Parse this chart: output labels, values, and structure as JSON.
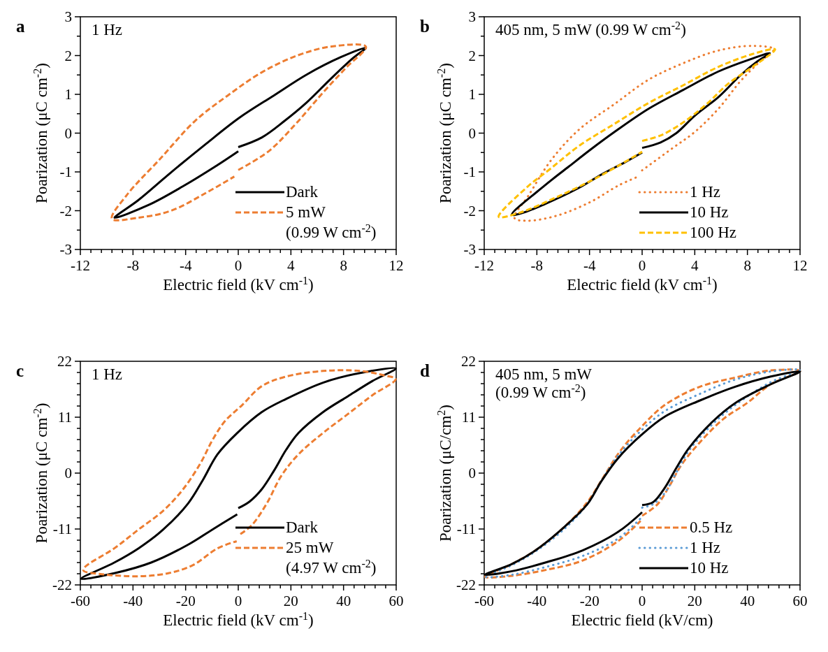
{
  "chart_data": [
    {
      "type": "line",
      "xlabel": "Electric field (kV cm$^{-1}$)",
      "ylabel": "Poarization (μC cm$^{-2}$)",
      "annotations": [
        "a",
        "1 Hz"
      ],
      "legend": "bottom right",
      "xlim": [
        -12,
        12
      ],
      "ylim": [
        -3,
        3
      ],
      "xticks": [
        -12,
        {
          "value": -11.2,
          "label": null
        },
        {
          "value": -10.4,
          "label": null
        },
        {
          "value": -9.6,
          "label": null
        },
        {
          "value": -8.8,
          "label": null
        },
        -8,
        {
          "value": -7.2,
          "label": null
        },
        {
          "value": -6.4,
          "label": null
        },
        {
          "value": -5.6,
          "label": null
        },
        {
          "value": -4.8,
          "label": null
        },
        -4,
        {
          "value": -3.2,
          "label": null
        },
        {
          "value": -2.4,
          "label": null
        },
        {
          "value": -1.6,
          "label": null
        },
        {
          "value": -0.8,
          "label": null
        },
        0,
        {
          "value": 0.8,
          "label": null
        },
        {
          "value": 1.6,
          "label": null
        },
        {
          "value": 2.4,
          "label": null
        },
        {
          "value": 3.2,
          "label": null
        },
        4,
        {
          "value": 4.8,
          "label": null
        },
        {
          "value": 5.6,
          "label": null
        },
        {
          "value": 6.4,
          "label": null
        },
        {
          "value": 7.2,
          "label": null
        },
        8,
        {
          "value": 8.8,
          "label": null
        },
        {
          "value": 9.6,
          "label": null
        },
        {
          "value": 10.4,
          "label": null
        },
        {
          "value": 11.2,
          "label": null
        },
        12
      ],
      "yticks": [
        -3,
        {
          "value": -2.5,
          "label": null
        },
        -2,
        {
          "value": -1.5,
          "label": null
        },
        -1,
        {
          "value": -0.5,
          "label": null
        },
        0,
        {
          "value": 0.5,
          "label": null
        },
        1,
        {
          "value": 1.5,
          "label": null
        },
        2,
        {
          "value": 2.5,
          "label": null
        },
        3
      ],
      "series": [
        {
          "name": "Dark",
          "color": "#000000",
          "line_style": "solid",
          "x": [
            0,
            1.8,
            3.5,
            5.2,
            7.0,
            8.7,
            9.7,
            7.8,
            5.2,
            2.7,
            0.1,
            -2.5,
            -5.1,
            -7.6,
            -9.4,
            -6.8,
            -4.2,
            -1.6,
            0
          ],
          "values": [
            -0.36,
            -0.11,
            0.31,
            0.79,
            1.39,
            1.93,
            2.2,
            1.96,
            1.51,
            0.97,
            0.4,
            -0.29,
            -1.01,
            -1.73,
            -2.18,
            -1.85,
            -1.37,
            -0.83,
            -0.47
          ]
        },
        {
          "name": "5 mW\n(0.99 W cm$^{-2}$)",
          "color": "#ed7d31",
          "line_style": "dashed",
          "x": [
            0,
            2.3,
            4.4,
            6.4,
            8.2,
            9.7,
            7.0,
            4.4,
            1.8,
            -0.8,
            -3.3,
            -5.9,
            -8.5,
            -9.6,
            -7.6,
            -5.1,
            -2.5,
            -0.3
          ],
          "values": [
            -0.95,
            -0.47,
            0.25,
            1.03,
            1.69,
            2.23,
            2.23,
            1.99,
            1.57,
            0.97,
            0.31,
            -0.65,
            -1.61,
            -2.21,
            -2.18,
            -2.0,
            -1.55,
            -1.12
          ]
        }
      ]
    },
    {
      "type": "line",
      "xlabel": "Electric field (kV cm$^{-1}$)",
      "ylabel": "Poarization (μC cm$^{-2}$)",
      "annotations": [
        "b",
        "405 nm, 5 mW (0.99 W cm$^{-2}$)"
      ],
      "legend": "bottom right",
      "xlim": [
        -12,
        12
      ],
      "ylim": [
        -3,
        3
      ],
      "xticks": [
        -12,
        {
          "value": -11.2,
          "label": null
        },
        {
          "value": -10.4,
          "label": null
        },
        {
          "value": -9.6,
          "label": null
        },
        {
          "value": -8.8,
          "label": null
        },
        -8,
        {
          "value": -7.2,
          "label": null
        },
        {
          "value": -6.4,
          "label": null
        },
        {
          "value": -5.6,
          "label": null
        },
        {
          "value": -4.8,
          "label": null
        },
        -4,
        {
          "value": -3.2,
          "label": null
        },
        {
          "value": -2.4,
          "label": null
        },
        {
          "value": -1.6,
          "label": null
        },
        {
          "value": -0.8,
          "label": null
        },
        0,
        {
          "value": 0.8,
          "label": null
        },
        {
          "value": 1.6,
          "label": null
        },
        {
          "value": 2.4,
          "label": null
        },
        {
          "value": 3.2,
          "label": null
        },
        4,
        {
          "value": 4.8,
          "label": null
        },
        {
          "value": 5.6,
          "label": null
        },
        {
          "value": 6.4,
          "label": null
        },
        {
          "value": 7.2,
          "label": null
        },
        8,
        {
          "value": 8.8,
          "label": null
        },
        {
          "value": 9.6,
          "label": null
        },
        {
          "value": 10.4,
          "label": null
        },
        {
          "value": 11.2,
          "label": null
        },
        12
      ],
      "yticks": [
        -3,
        {
          "value": -2.5,
          "label": null
        },
        -2,
        {
          "value": -1.5,
          "label": null
        },
        -1,
        {
          "value": -0.5,
          "label": null
        },
        0,
        {
          "value": 0.5,
          "label": null
        },
        1,
        {
          "value": 1.5,
          "label": null
        },
        2,
        {
          "value": 2.5,
          "label": null
        },
        3
      ],
      "series": [
        {
          "name": "1 Hz",
          "color": "#ed7d31",
          "line_style": "dotted",
          "x": [
            0,
            2.3,
            4.0,
            5.8,
            7.5,
            8.9,
            10.0,
            8.4,
            5.8,
            3.1,
            0.5,
            -2.1,
            -4.8,
            -6.9,
            -8.6,
            -9.7,
            -8.8,
            -6.5,
            -3.9,
            -1.8,
            -0.3
          ],
          "values": [
            -0.96,
            -0.39,
            0.03,
            0.63,
            1.35,
            1.83,
            2.16,
            2.25,
            2.13,
            1.8,
            1.38,
            0.75,
            0.09,
            -0.69,
            -1.59,
            -2.19,
            -2.26,
            -2.13,
            -1.77,
            -1.35,
            -1.12
          ]
        },
        {
          "name": "10 Hz",
          "color": "#000000",
          "line_style": "solid",
          "x": [
            0,
            1.4,
            2.6,
            4.0,
            5.8,
            7.5,
            8.8,
            9.7,
            8.1,
            5.8,
            3.1,
            0.5,
            -2.1,
            -3.9,
            -5.6,
            -7.4,
            -9.9,
            -9.2,
            -7.4,
            -4.8,
            -3.0,
            -1.3,
            0
          ],
          "values": [
            -0.38,
            -0.24,
            0,
            0.45,
            0.93,
            1.5,
            1.86,
            2.06,
            1.89,
            1.59,
            1.11,
            0.63,
            0.03,
            -0.42,
            -0.87,
            -1.35,
            -2.1,
            -2.07,
            -1.83,
            -1.41,
            -1.05,
            -0.75,
            -0.5
          ]
        },
        {
          "name": "100 Hz",
          "color": "#ffc000",
          "line_style": "dashed",
          "x": [
            0,
            1.4,
            3.1,
            4.9,
            6.6,
            8.4,
            10.1,
            8.4,
            5.8,
            3.1,
            0.5,
            -2.1,
            -4.8,
            -6.9,
            -8.8,
            -10.9,
            -9.2,
            -6.5,
            -3.9,
            -1.8,
            0
          ],
          "values": [
            -0.2,
            -0.06,
            0.27,
            0.75,
            1.29,
            1.71,
            2.16,
            2.04,
            1.71,
            1.23,
            0.78,
            0.24,
            -0.33,
            -0.9,
            -1.41,
            -2.16,
            -2.04,
            -1.65,
            -1.23,
            -0.84,
            -0.48
          ]
        }
      ]
    },
    {
      "type": "line",
      "xlabel": "Electric field (kV cm$^{-1}$)",
      "ylabel": "Poarization (μC cm$^{-2}$)",
      "annotations": [
        "c",
        "1 Hz"
      ],
      "legend": "bottom right",
      "xlim": [
        -60,
        60
      ],
      "ylim": [
        -22,
        22
      ],
      "xticks": [
        -60,
        {
          "value": -56,
          "label": null
        },
        {
          "value": -52,
          "label": null
        },
        {
          "value": -48,
          "label": null
        },
        {
          "value": -44,
          "label": null
        },
        -40,
        {
          "value": -36,
          "label": null
        },
        {
          "value": -32,
          "label": null
        },
        {
          "value": -28,
          "label": null
        },
        {
          "value": -24,
          "label": null
        },
        -20,
        {
          "value": -16,
          "label": null
        },
        {
          "value": -12,
          "label": null
        },
        {
          "value": -8,
          "label": null
        },
        {
          "value": -4,
          "label": null
        },
        0,
        {
          "value": 4,
          "label": null
        },
        {
          "value": 8,
          "label": null
        },
        {
          "value": 12,
          "label": null
        },
        {
          "value": 16,
          "label": null
        },
        20,
        {
          "value": 24,
          "label": null
        },
        {
          "value": 28,
          "label": null
        },
        {
          "value": 32,
          "label": null
        },
        {
          "value": 36,
          "label": null
        },
        40,
        {
          "value": 44,
          "label": null
        },
        {
          "value": 48,
          "label": null
        },
        {
          "value": 52,
          "label": null
        },
        {
          "value": 56,
          "label": null
        },
        60
      ],
      "yticks": [
        -22,
        {
          "value": -19.8,
          "label": null
        },
        {
          "value": -17.6,
          "label": null
        },
        {
          "value": -15.4,
          "label": null
        },
        {
          "value": -13.2,
          "label": null
        },
        -11,
        {
          "value": -8.8,
          "label": null
        },
        {
          "value": -6.6,
          "label": null
        },
        {
          "value": -4.4,
          "label": null
        },
        {
          "value": -2.2,
          "label": null
        },
        0,
        {
          "value": 2.2,
          "label": null
        },
        {
          "value": 4.4,
          "label": null
        },
        {
          "value": 6.6,
          "label": null
        },
        {
          "value": 8.8,
          "label": null
        },
        11,
        {
          "value": 13.2,
          "label": null
        },
        {
          "value": 15.4,
          "label": null
        },
        {
          "value": 17.6,
          "label": null
        },
        {
          "value": 19.8,
          "label": null
        },
        22
      ],
      "series": [
        {
          "name": "Dark",
          "color": "#000000",
          "line_style": "solid",
          "x": [
            0,
            4.3,
            8.9,
            13.6,
            18.2,
            22.9,
            32.2,
            41.6,
            50.9,
            59.8,
            46.3,
            32.2,
            18.2,
            8.9,
            -0.4,
            -7.9,
            -13.5,
            -19.1,
            -28.5,
            -37.9,
            -47.1,
            -59.7,
            -47.1,
            -33.1,
            -19.1,
            -9.8,
            -0.4
          ],
          "values": [
            -6.9,
            -5.6,
            -3.2,
            0.5,
            4.6,
            7.9,
            12.0,
            15.1,
            18.1,
            20.6,
            19.7,
            17.8,
            14.6,
            12.0,
            7.9,
            3.7,
            -1.4,
            -6.0,
            -11.1,
            -14.8,
            -17.6,
            -20.8,
            -19.7,
            -17.6,
            -14.1,
            -11.1,
            -8.1
          ]
        },
        {
          "name": "25 mW\n(4.97 W cm$^{-2}$)",
          "color": "#ed7d31",
          "line_style": "dashed",
          "x": [
            0.8,
            5.2,
            10.8,
            16.4,
            22.9,
            32.2,
            41.6,
            50.9,
            59.8,
            55.6,
            46.3,
            32.2,
            18.2,
            8.9,
            1.5,
            -5.1,
            -9.8,
            -14.4,
            -21.0,
            -28.5,
            -37.9,
            -47.1,
            -58.3,
            -58.8,
            -51.8,
            -37.9,
            -26.6,
            -17.2,
            -7.9,
            -0.6
          ],
          "values": [
            -12.0,
            -10.2,
            -6.0,
            -0.5,
            3.7,
            7.9,
            11.6,
            15.3,
            18.5,
            19.2,
            20.1,
            20.1,
            19.0,
            17.1,
            13.4,
            10.2,
            6.5,
            1.9,
            -3.2,
            -7.4,
            -11.1,
            -14.8,
            -18.5,
            -19.2,
            -19.9,
            -20.3,
            -19.7,
            -18.1,
            -14.8,
            -13.4
          ]
        }
      ]
    },
    {
      "type": "line",
      "xlabel": "Electric field (kV/cm)",
      "ylabel": "Poarization (μC/cm$^{2}$)",
      "annotations": [
        "d",
        "405 nm, 5 mW\n(0.99 W cm$^{-2}$)"
      ],
      "legend": "bottom right",
      "xlim": [
        -60,
        60
      ],
      "ylim": [
        -22,
        22
      ],
      "xticks": [
        -60,
        {
          "value": -56,
          "label": null
        },
        {
          "value": -52,
          "label": null
        },
        {
          "value": -48,
          "label": null
        },
        {
          "value": -44,
          "label": null
        },
        -40,
        {
          "value": -36,
          "label": null
        },
        {
          "value": -32,
          "label": null
        },
        {
          "value": -28,
          "label": null
        },
        {
          "value": -24,
          "label": null
        },
        -20,
        {
          "value": -16,
          "label": null
        },
        {
          "value": -12,
          "label": null
        },
        {
          "value": -8,
          "label": null
        },
        {
          "value": -4,
          "label": null
        },
        0,
        {
          "value": 4,
          "label": null
        },
        {
          "value": 8,
          "label": null
        },
        {
          "value": 12,
          "label": null
        },
        {
          "value": 16,
          "label": null
        },
        20,
        {
          "value": 24,
          "label": null
        },
        {
          "value": 28,
          "label": null
        },
        {
          "value": 32,
          "label": null
        },
        {
          "value": 36,
          "label": null
        },
        40,
        {
          "value": 44,
          "label": null
        },
        {
          "value": 48,
          "label": null
        },
        {
          "value": 52,
          "label": null
        },
        {
          "value": 56,
          "label": null
        },
        60
      ],
      "yticks": [
        -22,
        {
          "value": -19.8,
          "label": null
        },
        {
          "value": -17.6,
          "label": null
        },
        {
          "value": -15.4,
          "label": null
        },
        {
          "value": -13.2,
          "label": null
        },
        -11,
        {
          "value": -8.8,
          "label": null
        },
        {
          "value": -6.6,
          "label": null
        },
        {
          "value": -4.4,
          "label": null
        },
        {
          "value": -2.2,
          "label": null
        },
        0,
        {
          "value": 2.2,
          "label": null
        },
        {
          "value": 4.4,
          "label": null
        },
        {
          "value": 6.6,
          "label": null
        },
        {
          "value": 8.8,
          "label": null
        },
        11,
        {
          "value": 13.2,
          "label": null
        },
        {
          "value": 15.4,
          "label": null
        },
        {
          "value": 17.6,
          "label": null
        },
        {
          "value": 19.8,
          "label": null
        },
        22
      ],
      "series": [
        {
          "name": "0.5 Hz",
          "color": "#ed7d31",
          "line_style": "dashed",
          "x": [
            0,
            5.9,
            10.4,
            14.9,
            22.0,
            31.0,
            39.9,
            48.9,
            60.0,
            48.9,
            35.4,
            22.0,
            8.6,
            -0.3,
            -8.4,
            -14.6,
            -20.8,
            -29.8,
            -40.5,
            -49.5,
            -59.7,
            -49.5,
            -36.1,
            -22.6,
            -9.2,
            -0.6
          ],
          "values": [
            -8.4,
            -6.1,
            -2.5,
            1.6,
            6.1,
            10.7,
            13.8,
            17.5,
            20.1,
            20.2,
            18.8,
            17.0,
            13.4,
            9.1,
            4.3,
            -0.7,
            -5.7,
            -10.7,
            -15.2,
            -17.9,
            -20.4,
            -20.2,
            -19.0,
            -17.2,
            -13.4,
            -9.4
          ]
        },
        {
          "name": "1 Hz",
          "color": "#5b9bd5",
          "line_style": "dotted",
          "x": [
            0,
            4.2,
            8.6,
            13.1,
            17.6,
            26.5,
            35.4,
            48.9,
            60.0,
            48.9,
            35.4,
            22.0,
            8.6,
            -0.3,
            -9.2,
            -15.5,
            -20.8,
            -29.8,
            -40.5,
            -49.5,
            -59.3,
            -49.5,
            -36.1,
            -22.6,
            -9.2,
            0
          ],
          "values": [
            -6.8,
            -6.1,
            -3.9,
            0.2,
            4.3,
            9.5,
            13.4,
            17.9,
            20.3,
            20.0,
            18.4,
            15.6,
            12.2,
            8.4,
            3.4,
            -1.6,
            -6.1,
            -11.1,
            -15.4,
            -18.1,
            -20.4,
            -20.0,
            -18.4,
            -16.3,
            -12.9,
            -8.6
          ]
        },
        {
          "name": "10 Hz",
          "color": "#000000",
          "line_style": "solid",
          "x": [
            0,
            4.2,
            8.6,
            13.1,
            17.6,
            26.5,
            35.4,
            48.9,
            60.0,
            48.9,
            35.4,
            22.0,
            8.6,
            -0.3,
            -9.2,
            -15.5,
            -20.8,
            -29.8,
            -40.5,
            -49.5,
            -59.7,
            -49.5,
            -36.1,
            -22.6,
            -9.2,
            0
          ],
          "values": [
            -6.3,
            -5.7,
            -2.9,
            1.1,
            4.8,
            10.0,
            13.8,
            17.5,
            20.0,
            19.0,
            17.0,
            14.3,
            11.1,
            7.5,
            2.9,
            -1.6,
            -6.1,
            -10.7,
            -15.2,
            -17.9,
            -20.0,
            -19.3,
            -17.5,
            -15.2,
            -11.6,
            -7.7
          ]
        }
      ]
    }
  ]
}
